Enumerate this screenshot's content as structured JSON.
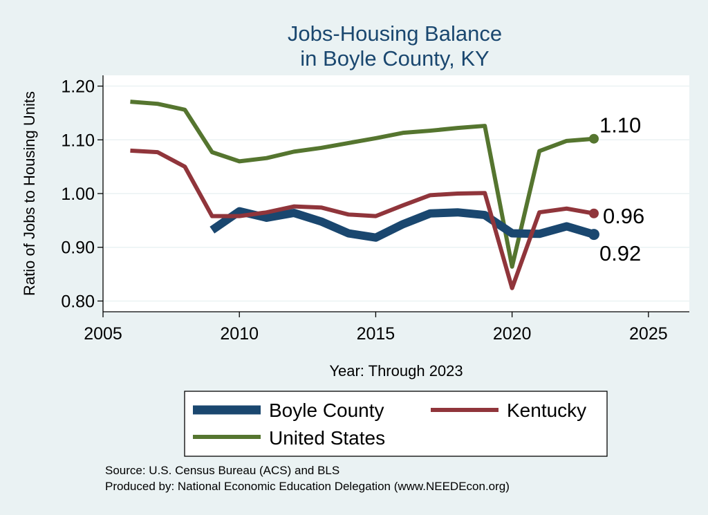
{
  "chart_data": {
    "type": "line",
    "title_lines": [
      "Jobs-Housing Balance",
      "in Boyle County, KY"
    ],
    "xlabel": "Year: Through 2023",
    "ylabel": "Ratio of Jobs to Housing Units",
    "xlim": [
      2005,
      2026.5
    ],
    "ylim": [
      0.78,
      1.22
    ],
    "xticks": [
      2005,
      2010,
      2015,
      2020,
      2025
    ],
    "xtick_labels": [
      "2005",
      "2010",
      "2015",
      "2020",
      "2025"
    ],
    "yticks": [
      0.8,
      0.9,
      1.0,
      1.1,
      1.2
    ],
    "ytick_labels": [
      "0.80",
      "0.90",
      "1.00",
      "1.10",
      "1.20"
    ],
    "grid": "horizontal",
    "series": [
      {
        "name": "Boyle County",
        "color": "#1a476f",
        "x": [
          2009,
          2010,
          2011,
          2012,
          2013,
          2014,
          2015,
          2016,
          2017,
          2018,
          2019,
          2020,
          2021,
          2022,
          2023
        ],
        "values": [
          0.932,
          0.967,
          0.955,
          0.964,
          0.948,
          0.926,
          0.918,
          0.943,
          0.963,
          0.965,
          0.96,
          0.926,
          0.925,
          0.939,
          0.924
        ],
        "end_label": "0.92"
      },
      {
        "name": "Kentucky",
        "color": "#90353b",
        "x": [
          2006,
          2007,
          2008,
          2009,
          2010,
          2011,
          2012,
          2013,
          2014,
          2015,
          2016,
          2017,
          2018,
          2019,
          2020,
          2021,
          2022,
          2023
        ],
        "values": [
          1.08,
          1.077,
          1.05,
          0.958,
          0.958,
          0.965,
          0.976,
          0.974,
          0.961,
          0.958,
          0.978,
          0.997,
          1.0,
          1.001,
          0.824,
          0.965,
          0.972,
          0.963
        ],
        "end_label": "0.96"
      },
      {
        "name": "United States",
        "color": "#55752f",
        "x": [
          2006,
          2007,
          2008,
          2009,
          2010,
          2011,
          2012,
          2013,
          2014,
          2015,
          2016,
          2017,
          2018,
          2019,
          2020,
          2021,
          2022,
          2023
        ],
        "values": [
          1.171,
          1.167,
          1.156,
          1.077,
          1.06,
          1.066,
          1.078,
          1.085,
          1.094,
          1.103,
          1.113,
          1.117,
          1.122,
          1.126,
          0.864,
          1.079,
          1.098,
          1.102
        ],
        "end_label": "1.10"
      }
    ],
    "legend": {
      "placement": "bottom",
      "entries": [
        "Boyle County",
        "Kentucky",
        "United States"
      ]
    },
    "notes": [
      "Source: U.S. Census Bureau (ACS) and BLS",
      "Produced by: National Economic Education Delegation (www.NEEDEcon.org)"
    ]
  }
}
